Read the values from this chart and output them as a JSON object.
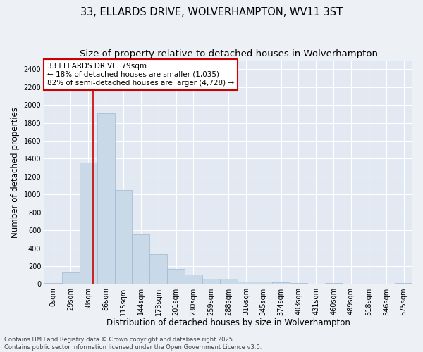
{
  "title1": "33, ELLARDS DRIVE, WOLVERHAMPTON, WV11 3ST",
  "title2": "Size of property relative to detached houses in Wolverhampton",
  "xlabel": "Distribution of detached houses by size in Wolverhampton",
  "ylabel": "Number of detached properties",
  "categories": [
    "0sqm",
    "29sqm",
    "58sqm",
    "86sqm",
    "115sqm",
    "144sqm",
    "173sqm",
    "201sqm",
    "230sqm",
    "259sqm",
    "288sqm",
    "316sqm",
    "345sqm",
    "374sqm",
    "403sqm",
    "431sqm",
    "460sqm",
    "489sqm",
    "518sqm",
    "546sqm",
    "575sqm"
  ],
  "values": [
    10,
    130,
    1360,
    1910,
    1050,
    555,
    335,
    170,
    105,
    60,
    55,
    30,
    25,
    20,
    10,
    5,
    15,
    3,
    3,
    3,
    10
  ],
  "bar_color": "#c9d9e8",
  "bar_edgecolor": "#a0b8d0",
  "redline_color": "#cc0000",
  "annotation_text": "33 ELLARDS DRIVE: 79sqm\n← 18% of detached houses are smaller (1,035)\n82% of semi-detached houses are larger (4,728) →",
  "annotation_box_color": "#ffffff",
  "annotation_box_edgecolor": "#cc0000",
  "ylim": [
    0,
    2500
  ],
  "yticks": [
    0,
    200,
    400,
    600,
    800,
    1000,
    1200,
    1400,
    1600,
    1800,
    2000,
    2200,
    2400
  ],
  "footnote1": "Contains HM Land Registry data © Crown copyright and database right 2025.",
  "footnote2": "Contains public sector information licensed under the Open Government Licence v3.0.",
  "bg_color": "#edf1f6",
  "plot_bg_color": "#e2e9f2",
  "grid_color": "#ffffff",
  "title_fontsize": 10.5,
  "subtitle_fontsize": 9.5,
  "axis_label_fontsize": 8.5,
  "tick_fontsize": 7,
  "annotation_fontsize": 7.5,
  "footnote_fontsize": 6.0
}
